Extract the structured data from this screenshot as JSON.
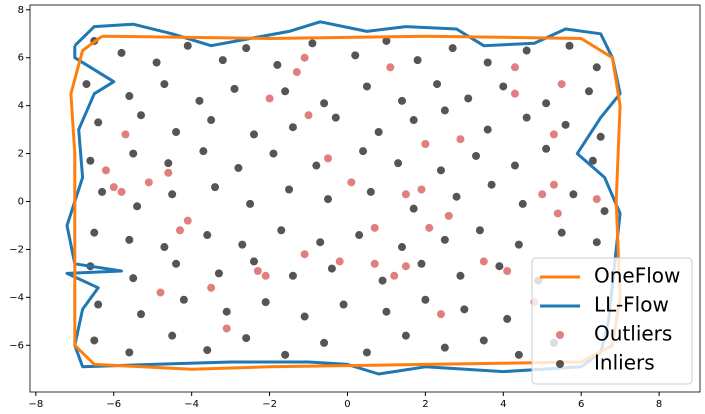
{
  "chart_data": {
    "type": "scatter",
    "xlim": [
      -8.15,
      9.05
    ],
    "ylim": [
      -7.95,
      8.2
    ],
    "xticks": [
      {
        "value": -8,
        "label": "−8"
      },
      {
        "value": -6,
        "label": "−6"
      },
      {
        "value": -4,
        "label": "−4"
      },
      {
        "value": -2,
        "label": "−2"
      },
      0,
      2,
      4,
      6,
      8
    ],
    "yticks": [
      {
        "value": -6,
        "label": "−6"
      },
      {
        "value": -4,
        "label": "−4"
      },
      {
        "value": -2,
        "label": "−2"
      },
      0,
      2,
      4,
      6,
      8
    ],
    "legend": "lower right",
    "series": [
      {
        "name": "OneFlow",
        "type": "line",
        "color": "#ff7f0e",
        "x": [
          -6.3,
          -2,
          2,
          6,
          6.8,
          7,
          6.9,
          7,
          6.8,
          6,
          2,
          -2,
          -4,
          -6.5,
          -7,
          -7,
          -7,
          -7.1,
          -6.8,
          -6.3
        ],
        "y": [
          6.9,
          6.8,
          6.9,
          6.8,
          6,
          4,
          0,
          -4,
          -6,
          -6.7,
          -6.8,
          -6.9,
          -7,
          -6.8,
          -6,
          -2,
          2,
          4.5,
          6.3,
          6.9
        ]
      },
      {
        "name": "LL-Flow",
        "type": "line",
        "color": "#1f77b4",
        "x": [
          -7,
          -6.5,
          -5.5,
          -4.5,
          -3.5,
          -2.5,
          -1.5,
          -0.7,
          0.5,
          1.5,
          2.8,
          3.5,
          4.8,
          5.6,
          6.5,
          6.8,
          7,
          6.5,
          5.9,
          6.6,
          7,
          6.9,
          6.8,
          6.7,
          6.5,
          6,
          5,
          4,
          2,
          1.2,
          0.8,
          0,
          -1,
          -3,
          -5,
          -6.8,
          -7,
          -6.8,
          -6.4,
          -7.2,
          -5.8,
          -7,
          -7.2,
          -6.8,
          -6.9,
          -6.5,
          -6,
          -7,
          -7
        ],
        "y": [
          6.5,
          7.3,
          7.4,
          7,
          6.5,
          6.8,
          7.1,
          7.5,
          7.1,
          7.3,
          7.2,
          6.5,
          6.6,
          7.2,
          7,
          6,
          4.5,
          3.5,
          2,
          1,
          -0.5,
          -2,
          -3.5,
          -5,
          -6.3,
          -6.9,
          -7,
          -7.1,
          -6.9,
          -7.1,
          -7.2,
          -6.8,
          -6.7,
          -6.7,
          -6.8,
          -6.9,
          -6,
          -4.5,
          -3.6,
          -3,
          -2.9,
          -2.6,
          -1,
          1,
          3,
          4.5,
          5,
          6,
          6.5
        ]
      },
      {
        "name": "Outliers",
        "type": "scatter",
        "color": "#d95f5f",
        "x": [
          -5.7,
          -5.1,
          -4.6,
          -4.3,
          -4.1,
          -3.5,
          -4.8,
          -3.1,
          -2.3,
          -2.1,
          -1.1,
          -0.2,
          0.7,
          0.7,
          1.2,
          1.5,
          1.5,
          1.9,
          2,
          2.1,
          2.6,
          2.4,
          3.5,
          2.9,
          4.3,
          4.3,
          5.5,
          5.3,
          4.8,
          5,
          5.4,
          5.3,
          -2,
          -1.3,
          -1,
          -1.1,
          1.1,
          0.1,
          -0.5,
          -6,
          -5.8,
          4.1,
          6.4,
          -6.2
        ],
        "y": [
          2.8,
          0.8,
          1.2,
          -1.2,
          -0.8,
          -3.6,
          -3.8,
          -5.3,
          -2.9,
          -3.1,
          -2.2,
          -2.5,
          -2.6,
          -1.1,
          -3.1,
          -2.7,
          0.3,
          0.5,
          2.4,
          -1.1,
          -0.6,
          -4.7,
          -2.5,
          2.6,
          4.5,
          5.6,
          4.9,
          2.8,
          -4.2,
          0.3,
          -0.5,
          0.7,
          4.3,
          5.4,
          3.6,
          6,
          5.6,
          0.8,
          1.8,
          0.6,
          0.4,
          -2.9,
          0.1,
          1.3
        ]
      },
      {
        "name": "Inliers",
        "type": "scatter",
        "color": "#2b2b2b",
        "x": [
          -6.5,
          -5.8,
          -4.9,
          -4.1,
          -3.2,
          -2.6,
          -1.8,
          -0.9,
          0.2,
          1.0,
          1.8,
          2.7,
          3.6,
          4.6,
          5.7,
          6.4,
          -6.7,
          -5.6,
          -4.7,
          -3.8,
          -2.9,
          -1.6,
          -0.6,
          0.5,
          1.4,
          2.3,
          3.1,
          4.0,
          5.1,
          6.2,
          -6.4,
          -5.3,
          -4.4,
          -3.5,
          -2.4,
          -1.4,
          -0.3,
          0.8,
          1.7,
          2.5,
          3.6,
          4.6,
          5.6,
          6.5,
          -6.6,
          -5.5,
          -4.6,
          -3.7,
          -2.8,
          -1.9,
          -0.8,
          0.4,
          1.3,
          2.4,
          3.3,
          4.3,
          5.1,
          6.3,
          -6.3,
          -5.4,
          -4.5,
          -3.4,
          -2.5,
          -1.5,
          -0.5,
          0.6,
          1.7,
          2.8,
          3.7,
          4.5,
          5.8,
          6.6,
          -6.5,
          -5.6,
          -4.7,
          -3.6,
          -2.7,
          -1.7,
          -0.7,
          0.3,
          1.4,
          2.5,
          3.4,
          4.4,
          5.5,
          6.4,
          -6.6,
          -5.5,
          -4.4,
          -3.3,
          -2.4,
          -1.4,
          -0.4,
          0.9,
          1.9,
          2.9,
          3.9,
          4.9,
          -6.4,
          -5.3,
          -4.2,
          -3.1,
          -2.1,
          -1.1,
          -0.1,
          1.0,
          2.0,
          3.0,
          4.1,
          -6.5,
          -5.6,
          -4.5,
          -3.6,
          -2.6,
          -1.6,
          -0.6,
          0.5,
          1.5,
          2.5,
          3.5,
          4.4,
          5.3
        ],
        "y": [
          6.7,
          6.2,
          5.8,
          6.5,
          5.9,
          6.4,
          5.7,
          6.6,
          6.1,
          6.7,
          5.9,
          6.4,
          5.8,
          6.3,
          6.5,
          5.6,
          4.9,
          4.4,
          4.9,
          4.2,
          4.7,
          4.6,
          4.1,
          4.8,
          4.2,
          4.9,
          4.3,
          4.8,
          4.1,
          4.6,
          3.3,
          3.6,
          2.9,
          3.4,
          2.8,
          3.1,
          3.5,
          2.9,
          3.4,
          3.8,
          3.0,
          3.5,
          3.2,
          2.7,
          1.7,
          2.0,
          1.6,
          2.1,
          1.4,
          2.0,
          1.5,
          2.1,
          1.6,
          1.3,
          1.9,
          1.5,
          2.2,
          1.7,
          0.4,
          -0.2,
          0.3,
          0.6,
          -0.1,
          0.5,
          0.1,
          0.4,
          -0.3,
          0.2,
          0.7,
          -0.1,
          0.3,
          -0.4,
          -1.3,
          -1.6,
          -1.9,
          -1.4,
          -1.8,
          -1.2,
          -1.7,
          -1.4,
          -1.9,
          -1.6,
          -1.2,
          -1.8,
          -1.3,
          -1.7,
          -2.7,
          -3.2,
          -2.6,
          -3.0,
          -2.5,
          -3.1,
          -2.8,
          -3.3,
          -2.6,
          -3.1,
          -2.7,
          -3.3,
          -4.3,
          -4.7,
          -4.1,
          -4.6,
          -4.2,
          -4.8,
          -4.3,
          -4.6,
          -4.1,
          -4.5,
          -4.9,
          -5.8,
          -6.3,
          -5.6,
          -6.2,
          -5.7,
          -6.4,
          -5.9,
          -6.3,
          -5.6,
          -6.1,
          -5.8,
          -6.4,
          -5.9
        ]
      }
    ]
  }
}
